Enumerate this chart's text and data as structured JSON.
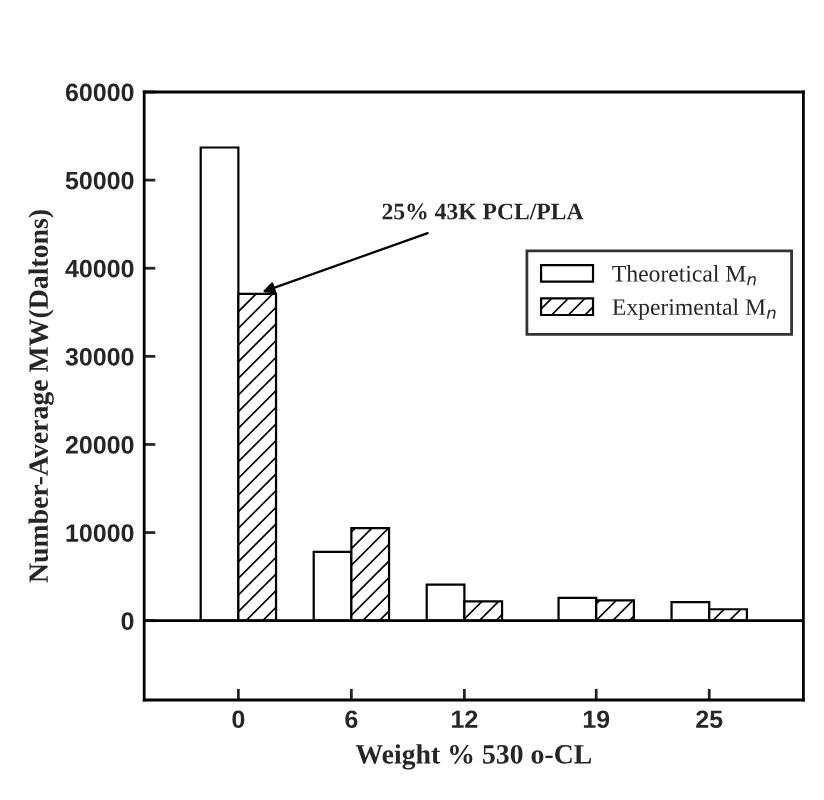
{
  "chart_data": {
    "type": "bar",
    "xlabel": "Weight % 530 o-CL",
    "ylabel": "Number-Average MW(Daltons)",
    "x": [
      0,
      6,
      12,
      19,
      25
    ],
    "series": [
      {
        "name": "Theoretical M$_{n}$",
        "color": "#000000",
        "values": [
          53700,
          7800,
          4100,
          2600,
          2100
        ]
      },
      {
        "name": "Experimental M$_{n}$",
        "color": "#000000",
        "values": [
          37100,
          10500,
          2200,
          2300,
          1300
        ]
      }
    ],
    "xlim": [
      -5,
      30
    ],
    "xticks": [
      0,
      6,
      12,
      19,
      25
    ],
    "ylim": [
      -9000,
      60000
    ],
    "yticks": [
      0,
      10000,
      20000,
      30000,
      40000,
      50000,
      60000
    ],
    "ref_lines": [
      {
        "axis": "y",
        "value": 0,
        "label": null,
        "color": "#000000"
      }
    ],
    "annotations": [
      {
        "text": "25% 43K PCL/PLA",
        "x": 1,
        "y": 37100
      }
    ],
    "grid": false,
    "legend": "right"
  }
}
